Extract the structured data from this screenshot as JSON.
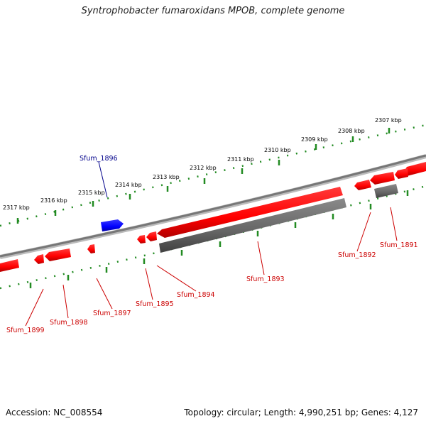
{
  "title": "Syntrophobacter fumaroxidans MPOB, complete genome",
  "footer": {
    "accession": "Accession: NC_008554",
    "summary": "Topology: circular; Length: 4,990,251 bp; Genes: 4,127"
  },
  "colors": {
    "forward_gene": "#0000ff",
    "reverse_gene": "#ff0000",
    "pseudo_gene": "#666666",
    "backbone": "#888888",
    "tick": "#228b22",
    "label_forward": "#00008b",
    "label_reverse": "#cc0000"
  },
  "scale_labels": [
    "2307 kbp",
    "2308 kbp",
    "2309 kbp",
    "2310 kbp",
    "2311 kbp",
    "2312 kbp",
    "2313 kbp",
    "2314 kbp",
    "2315 kbp",
    "2316 kbp",
    "2317 kbp"
  ],
  "gene_labels": {
    "sfum_1896": "Sfum_1896",
    "sfum_1891": "Sfum_1891",
    "sfum_1892": "Sfum_1892",
    "sfum_1893": "Sfum_1893",
    "sfum_1894": "Sfum_1894",
    "sfum_1895": "Sfum_1895",
    "sfum_1897": "Sfum_1897",
    "sfum_1898": "Sfum_1898",
    "sfum_1899": "Sfum_1899"
  }
}
